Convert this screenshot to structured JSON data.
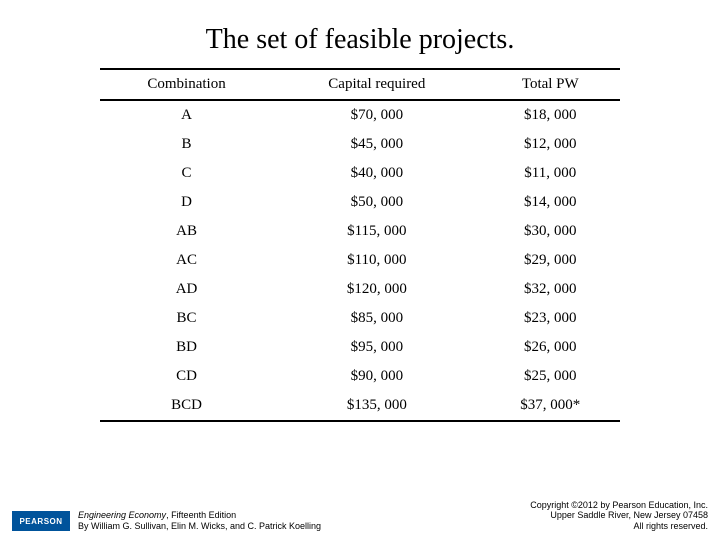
{
  "title": "The set of feasible projects.",
  "table": {
    "columns": [
      "Combination",
      "Capital required",
      "Total PW"
    ],
    "rows": [
      [
        "A",
        "$70, 000",
        "$18, 000"
      ],
      [
        "B",
        "$45, 000",
        "$12, 000"
      ],
      [
        "C",
        "$40, 000",
        "$11, 000"
      ],
      [
        "D",
        "$50, 000",
        "$14, 000"
      ],
      [
        "AB",
        "$115, 000",
        "$30, 000"
      ],
      [
        "AC",
        "$110, 000",
        "$29, 000"
      ],
      [
        "AD",
        "$120, 000",
        "$32, 000"
      ],
      [
        "BC",
        "$85, 000",
        "$23, 000"
      ],
      [
        "BD",
        "$95, 000",
        "$26, 000"
      ],
      [
        "CD",
        "$90, 000",
        "$25, 000"
      ],
      [
        "BCD",
        "$135, 000",
        "$37, 000*"
      ]
    ],
    "header_fontsize": 15,
    "body_fontsize": 15,
    "border_color": "#000000",
    "background_color": "#ffffff"
  },
  "footer": {
    "logo_text": "PEARSON",
    "logo_bg": "#00539b",
    "book_title": "Engineering Economy",
    "book_edition": ", Fifteenth Edition",
    "authors": "By William G. Sullivan, Elin M. Wicks, and C. Patrick Koelling",
    "copyright_line1": "Copyright ©2012 by Pearson Education, Inc.",
    "copyright_line2": "Upper Saddle River, New Jersey 07458",
    "copyright_line3": "All rights reserved."
  }
}
